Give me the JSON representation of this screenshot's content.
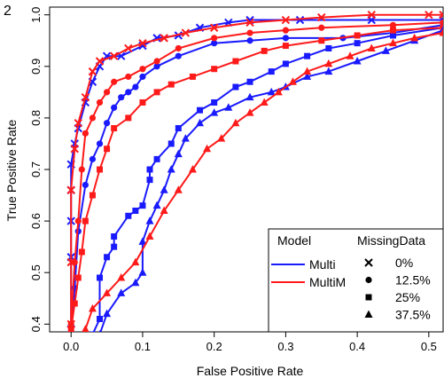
{
  "chart_data": {
    "type": "line",
    "panel_label": "2",
    "xlabel": "False Positive Rate",
    "ylabel": "True Positive Rate",
    "xlim": [
      -0.03,
      0.52
    ],
    "ylim": [
      0.385,
      1.015
    ],
    "x_ticks": [
      0.0,
      0.1,
      0.2,
      0.3,
      0.4,
      0.5
    ],
    "x_tick_labels": [
      "0.0",
      "0.1",
      "0.2",
      "0.3",
      "0.4",
      "0.5"
    ],
    "y_ticks": [
      0.4,
      0.5,
      0.6,
      0.7,
      0.8,
      0.9,
      1.0
    ],
    "y_tick_labels": [
      "0.4",
      "0.5",
      "0.6",
      "0.7",
      "0.8",
      "0.9",
      "1.0"
    ],
    "grid": false,
    "legend": {
      "placement": "bottom-right",
      "model_title": "Model",
      "missing_title": "MissingData",
      "models": [
        {
          "name": "Multi",
          "color": "#1a1aff"
        },
        {
          "name": "MultiM",
          "color": "#ff1a1a"
        }
      ],
      "missing": [
        {
          "label": "0%",
          "marker": "cross"
        },
        {
          "label": "12.5%",
          "marker": "circle"
        },
        {
          "label": "25%",
          "marker": "square"
        },
        {
          "label": "37.5%",
          "marker": "triangle"
        }
      ]
    },
    "series": [
      {
        "model": "Multi",
        "missing": "0%",
        "color": "#1a1aff",
        "marker": "cross",
        "x": [
          0.0,
          0.0,
          0.0,
          0.0,
          0.0,
          0.005,
          0.01,
          0.02,
          0.03,
          0.04,
          0.05,
          0.07,
          0.1,
          0.12,
          0.15,
          0.18,
          0.22,
          0.25,
          0.32,
          0.42,
          0.52
        ],
        "y": [
          0.39,
          0.53,
          0.6,
          0.66,
          0.71,
          0.75,
          0.78,
          0.83,
          0.87,
          0.9,
          0.92,
          0.92,
          0.94,
          0.955,
          0.96,
          0.975,
          0.985,
          0.99,
          0.99,
          0.99,
          0.99
        ]
      },
      {
        "model": "MultiM",
        "missing": "0%",
        "color": "#ff1a1a",
        "marker": "cross",
        "x": [
          0.0,
          0.0,
          0.0,
          0.005,
          0.01,
          0.02,
          0.03,
          0.04,
          0.06,
          0.08,
          0.1,
          0.13,
          0.16,
          0.2,
          0.25,
          0.3,
          0.35,
          0.42,
          0.5,
          0.52
        ],
        "y": [
          0.4,
          0.52,
          0.66,
          0.74,
          0.79,
          0.84,
          0.89,
          0.91,
          0.92,
          0.935,
          0.945,
          0.955,
          0.965,
          0.975,
          0.985,
          0.99,
          0.995,
          1.0,
          1.0,
          1.0
        ]
      },
      {
        "model": "Multi",
        "missing": "12.5%",
        "color": "#1a1aff",
        "marker": "circle",
        "x": [
          0.0,
          0.005,
          0.01,
          0.02,
          0.03,
          0.04,
          0.05,
          0.06,
          0.07,
          0.08,
          0.09,
          0.1,
          0.12,
          0.15,
          0.2,
          0.25,
          0.3,
          0.38,
          0.45,
          0.52
        ],
        "y": [
          0.38,
          0.47,
          0.58,
          0.67,
          0.72,
          0.75,
          0.79,
          0.82,
          0.84,
          0.85,
          0.86,
          0.88,
          0.9,
          0.92,
          0.945,
          0.95,
          0.955,
          0.955,
          0.965,
          0.98
        ]
      },
      {
        "model": "MultiM",
        "missing": "12.5%",
        "color": "#ff1a1a",
        "marker": "circle",
        "x": [
          0.0,
          0.005,
          0.01,
          0.015,
          0.02,
          0.03,
          0.04,
          0.05,
          0.06,
          0.08,
          0.1,
          0.12,
          0.15,
          0.2,
          0.25,
          0.3,
          0.35,
          0.45,
          0.52
        ],
        "y": [
          0.4,
          0.52,
          0.6,
          0.7,
          0.77,
          0.8,
          0.83,
          0.85,
          0.87,
          0.88,
          0.895,
          0.91,
          0.935,
          0.955,
          0.965,
          0.97,
          0.975,
          0.98,
          0.985
        ]
      },
      {
        "model": "Multi",
        "missing": "25%",
        "color": "#1a1aff",
        "marker": "square",
        "x": [
          0.03,
          0.04,
          0.04,
          0.05,
          0.06,
          0.06,
          0.08,
          0.09,
          0.1,
          0.11,
          0.11,
          0.12,
          0.14,
          0.15,
          0.18,
          0.2,
          0.23,
          0.25,
          0.28,
          0.3,
          0.33,
          0.36,
          0.4,
          0.45,
          0.52
        ],
        "y": [
          0.38,
          0.41,
          0.49,
          0.53,
          0.55,
          0.57,
          0.61,
          0.62,
          0.63,
          0.68,
          0.7,
          0.72,
          0.75,
          0.78,
          0.815,
          0.83,
          0.86,
          0.87,
          0.89,
          0.905,
          0.92,
          0.935,
          0.945,
          0.96,
          0.975
        ]
      },
      {
        "model": "MultiM",
        "missing": "25%",
        "color": "#ff1a1a",
        "marker": "square",
        "x": [
          0.0,
          0.005,
          0.01,
          0.015,
          0.02,
          0.03,
          0.04,
          0.05,
          0.06,
          0.08,
          0.1,
          0.12,
          0.14,
          0.17,
          0.2,
          0.23,
          0.27,
          0.3,
          0.35,
          0.4,
          0.45,
          0.52
        ],
        "y": [
          0.39,
          0.44,
          0.49,
          0.54,
          0.6,
          0.65,
          0.7,
          0.74,
          0.78,
          0.8,
          0.83,
          0.85,
          0.865,
          0.88,
          0.895,
          0.91,
          0.93,
          0.94,
          0.95,
          0.96,
          0.97,
          0.975
        ]
      },
      {
        "model": "Multi",
        "missing": "37.5%",
        "color": "#1a1aff",
        "marker": "triangle",
        "x": [
          0.04,
          0.05,
          0.07,
          0.09,
          0.1,
          0.1,
          0.11,
          0.12,
          0.13,
          0.14,
          0.15,
          0.16,
          0.18,
          0.2,
          0.22,
          0.25,
          0.28,
          0.3,
          0.33,
          0.36,
          0.4,
          0.44,
          0.48,
          0.52
        ],
        "y": [
          0.38,
          0.42,
          0.46,
          0.48,
          0.5,
          0.56,
          0.6,
          0.63,
          0.66,
          0.7,
          0.73,
          0.76,
          0.79,
          0.81,
          0.82,
          0.84,
          0.85,
          0.86,
          0.88,
          0.89,
          0.91,
          0.93,
          0.95,
          0.97
        ]
      },
      {
        "model": "MultiM",
        "missing": "37.5%",
        "color": "#ff1a1a",
        "marker": "triangle",
        "x": [
          0.02,
          0.03,
          0.05,
          0.07,
          0.09,
          0.11,
          0.13,
          0.15,
          0.17,
          0.19,
          0.21,
          0.23,
          0.25,
          0.27,
          0.29,
          0.31,
          0.33,
          0.36,
          0.39,
          0.42,
          0.45,
          0.48,
          0.52
        ],
        "y": [
          0.39,
          0.43,
          0.46,
          0.49,
          0.52,
          0.57,
          0.62,
          0.66,
          0.7,
          0.74,
          0.76,
          0.79,
          0.81,
          0.83,
          0.85,
          0.87,
          0.89,
          0.905,
          0.92,
          0.935,
          0.945,
          0.955,
          0.965
        ]
      }
    ]
  }
}
